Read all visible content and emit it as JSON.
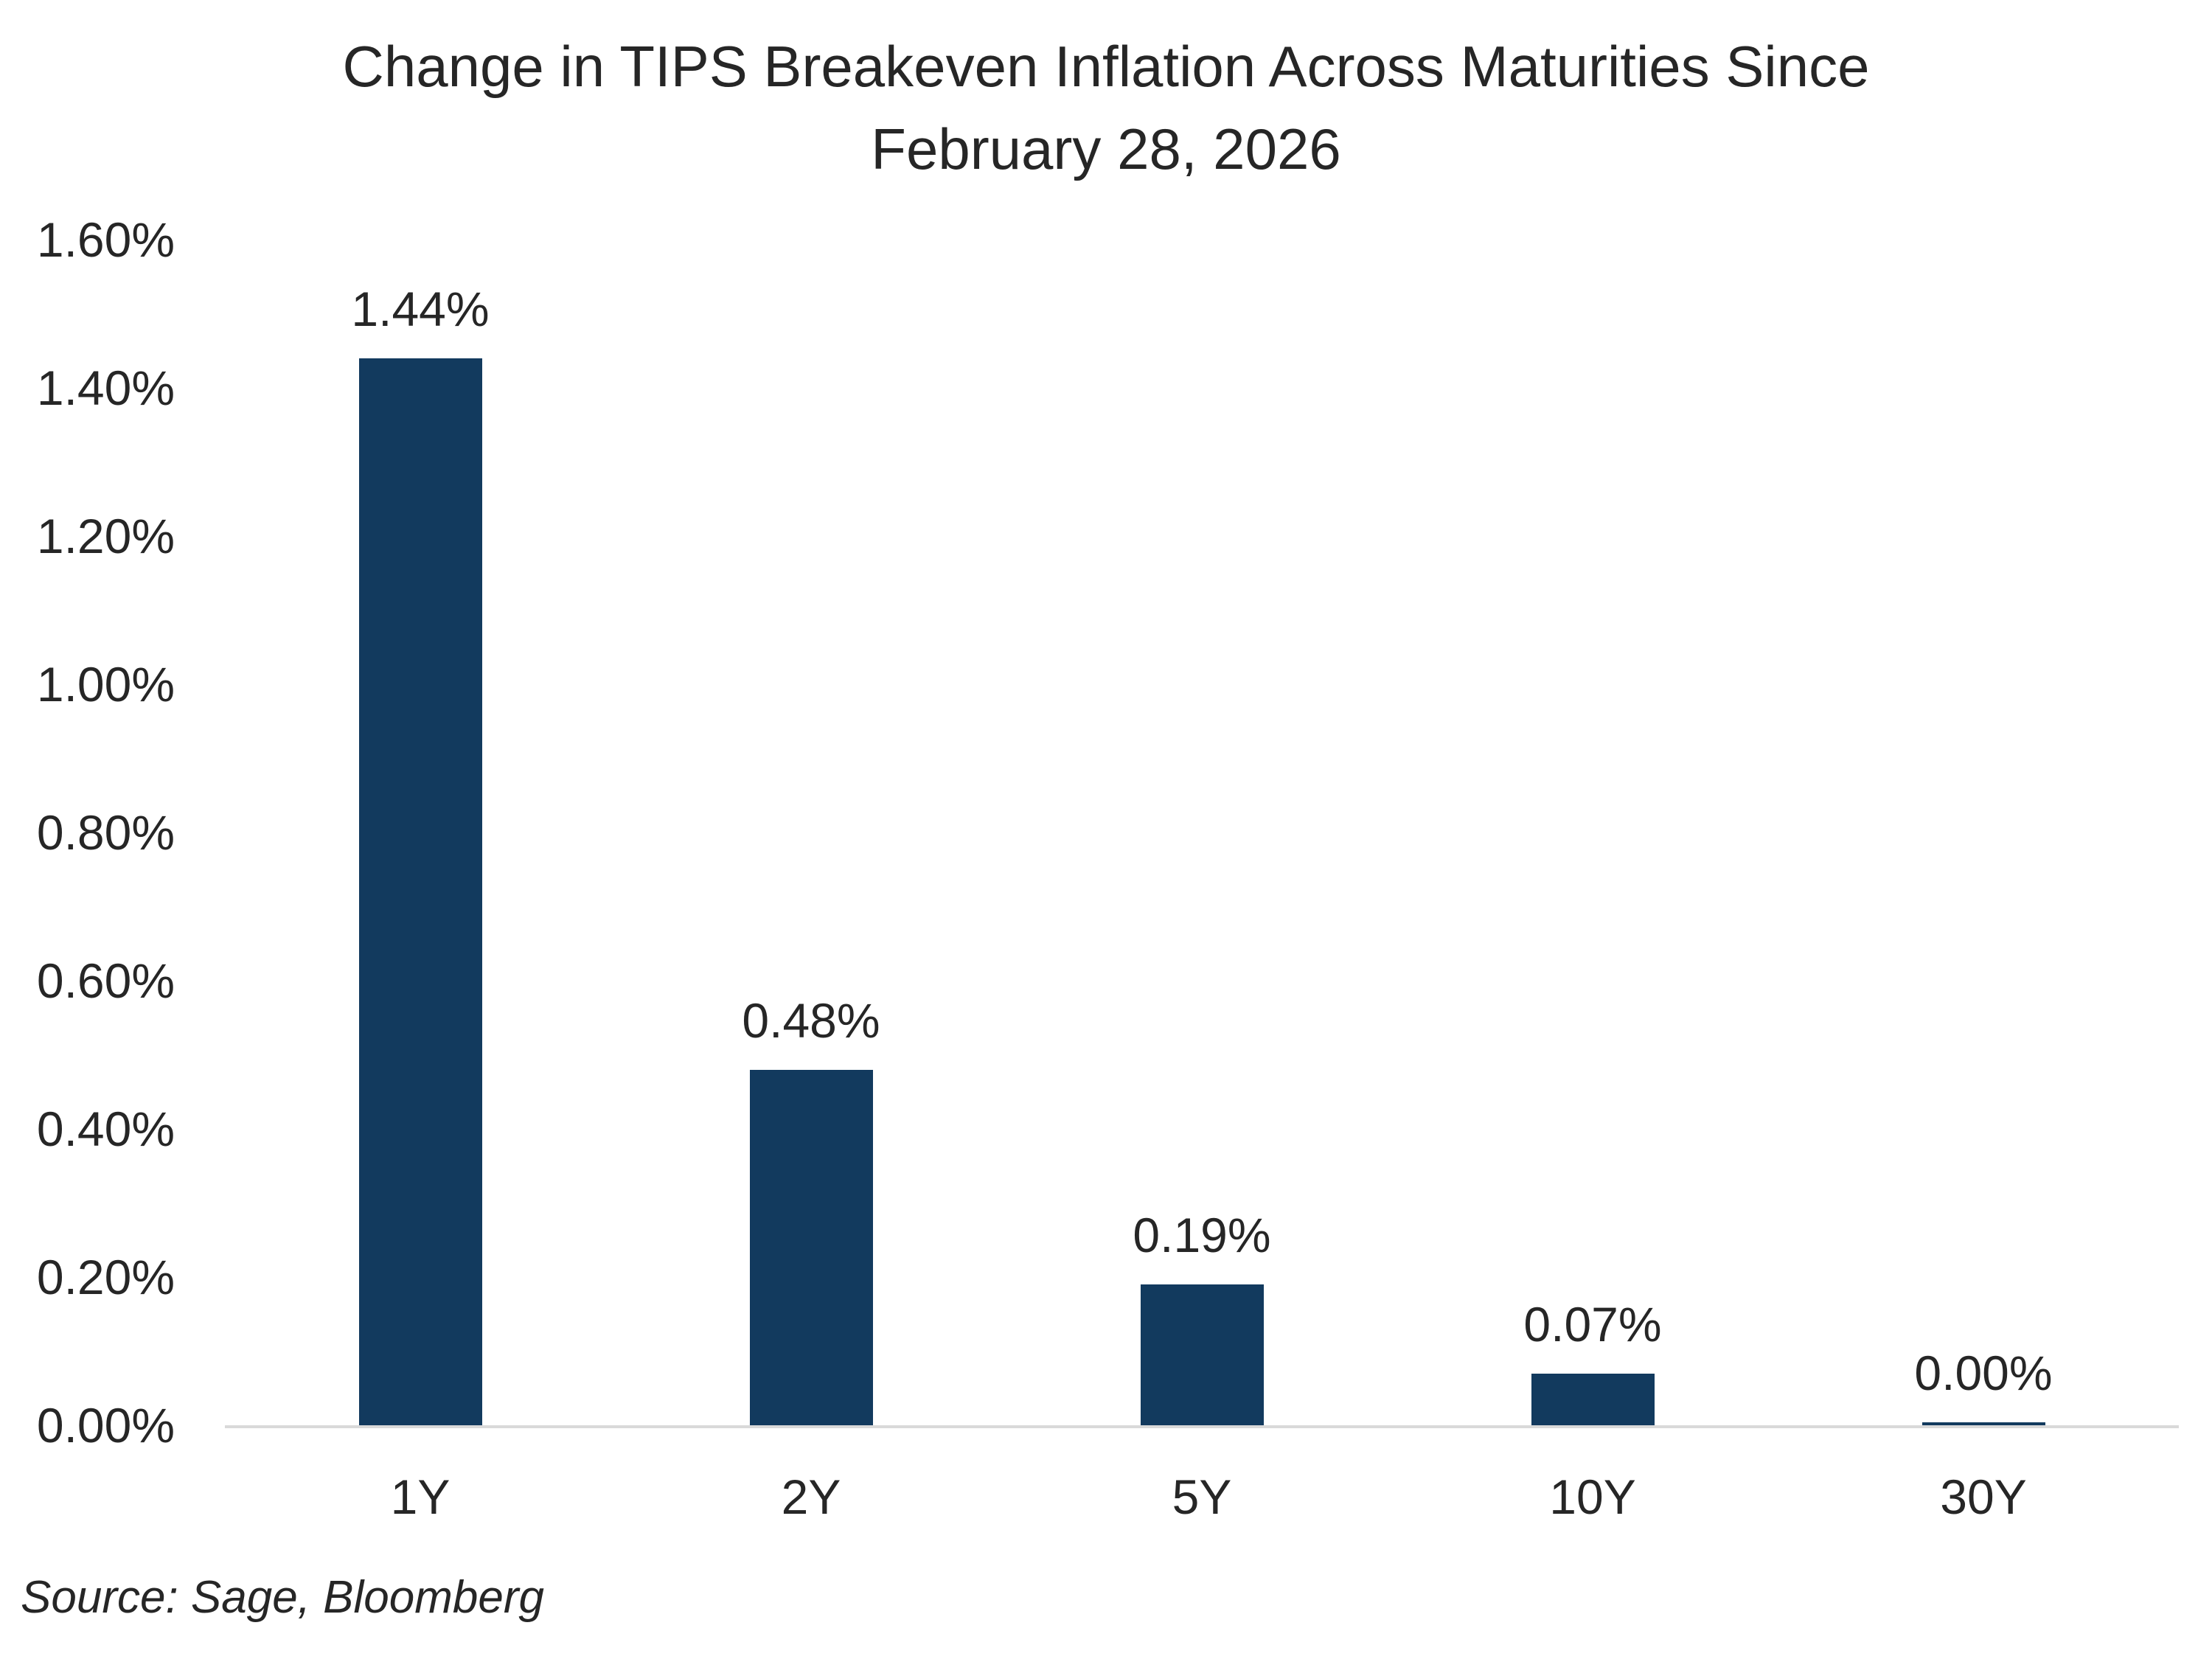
{
  "title": {
    "line1": "Change in TIPS Breakeven Inflation Across Maturities Since",
    "line2": "February 28, 2026"
  },
  "source": "Source: Sage, Bloomberg",
  "colors": {
    "bar": "#123A5E",
    "axis_line": "#D9D9D9",
    "text": "#262626"
  },
  "chart_data": {
    "type": "bar",
    "title": "Change in TIPS Breakeven Inflation Across Maturities Since February 28, 2026",
    "categories": [
      "1Y",
      "2Y",
      "5Y",
      "10Y",
      "30Y"
    ],
    "values": [
      1.44,
      0.48,
      0.19,
      0.07,
      0.0
    ],
    "data_labels": [
      "1.44%",
      "0.48%",
      "0.19%",
      "0.07%",
      "0.00%"
    ],
    "xlabel": "",
    "ylabel": "",
    "ylim": [
      0,
      1.6
    ],
    "ytick_step": 0.2,
    "ytick_labels": [
      "0.00%",
      "0.20%",
      "0.40%",
      "0.60%",
      "0.80%",
      "1.00%",
      "1.20%",
      "1.40%",
      "1.60%"
    ],
    "grid": false,
    "legend": "none",
    "bar_color": "#123A5E"
  }
}
